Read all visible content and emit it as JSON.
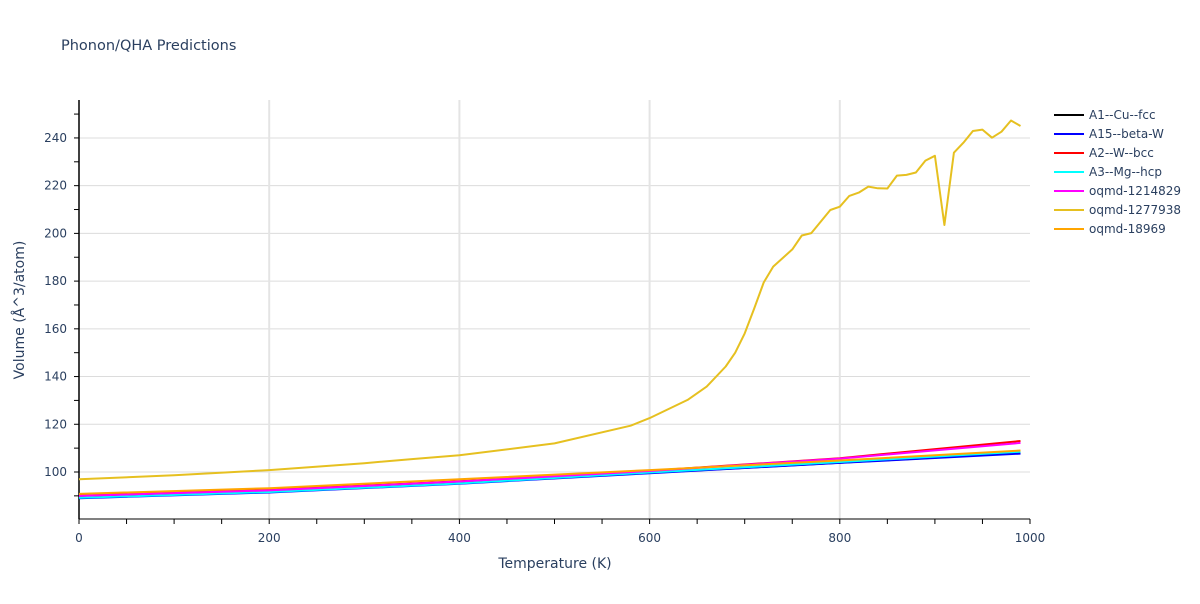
{
  "chart_data": {
    "type": "line",
    "title": "Phonon/QHA Predictions",
    "xlabel": "Temperature (K)",
    "ylabel": "Volume (Å^3/atom)",
    "xlim": [
      0,
      1000
    ],
    "ylim": [
      80.3,
      255.9
    ],
    "xticks": [
      0,
      200,
      400,
      600,
      800,
      1000
    ],
    "yticks": [
      100,
      120,
      140,
      160,
      180,
      200,
      220,
      240
    ],
    "grid": true,
    "legend_position": "right",
    "series": [
      {
        "name": "A1--Cu--fcc",
        "color": "#000000",
        "points": [
          [
            0,
            89.3
          ],
          [
            200,
            91.7
          ],
          [
            400,
            95.3
          ],
          [
            600,
            99.6
          ],
          [
            800,
            103.9
          ],
          [
            990,
            107.9
          ]
        ]
      },
      {
        "name": "A15--beta-W",
        "color": "#0000ff",
        "points": [
          [
            0,
            89.0
          ],
          [
            200,
            91.4
          ],
          [
            400,
            95.1
          ],
          [
            600,
            99.5
          ],
          [
            800,
            103.8
          ],
          [
            990,
            107.7
          ]
        ]
      },
      {
        "name": "A2--W--bcc",
        "color": "#ff0000",
        "points": [
          [
            0,
            90.2
          ],
          [
            200,
            92.5
          ],
          [
            400,
            96.1
          ],
          [
            600,
            100.5
          ],
          [
            800,
            105.8
          ],
          [
            990,
            113.0
          ]
        ]
      },
      {
        "name": "A3--Mg--hcp",
        "color": "#00ffff",
        "points": [
          [
            0,
            89.2
          ],
          [
            200,
            91.6
          ],
          [
            400,
            95.2
          ],
          [
            600,
            99.8
          ],
          [
            800,
            104.2
          ],
          [
            990,
            108.5
          ]
        ]
      },
      {
        "name": "oqmd-1214829",
        "color": "#ff00ff",
        "points": [
          [
            0,
            90.0
          ],
          [
            200,
            92.3
          ],
          [
            400,
            96.0
          ],
          [
            600,
            100.4
          ],
          [
            800,
            105.6
          ],
          [
            990,
            112.2
          ]
        ]
      },
      {
        "name": "oqmd-1277938",
        "color": "#e6c020",
        "points": [
          [
            0,
            97.0
          ],
          [
            100,
            98.6
          ],
          [
            200,
            100.8
          ],
          [
            300,
            103.7
          ],
          [
            350,
            105.4
          ],
          [
            400,
            107.0
          ],
          [
            500,
            112.0
          ],
          [
            580,
            119.4
          ],
          [
            600,
            122.6
          ],
          [
            640,
            130.2
          ],
          [
            660,
            135.8
          ],
          [
            680,
            144.2
          ],
          [
            690,
            150.0
          ],
          [
            700,
            158.1
          ],
          [
            710,
            168.5
          ],
          [
            720,
            179.4
          ],
          [
            730,
            186.1
          ],
          [
            750,
            193.3
          ],
          [
            760,
            199.1
          ],
          [
            770,
            200.1
          ],
          [
            790,
            209.8
          ],
          [
            800,
            211.2
          ],
          [
            810,
            215.7
          ],
          [
            820,
            217.1
          ],
          [
            830,
            219.6
          ],
          [
            840,
            218.9
          ],
          [
            850,
            218.8
          ],
          [
            860,
            224.2
          ],
          [
            870,
            224.5
          ],
          [
            880,
            225.5
          ],
          [
            890,
            230.5
          ],
          [
            900,
            232.5
          ],
          [
            910,
            203.5
          ],
          [
            920,
            233.8
          ],
          [
            930,
            238.0
          ],
          [
            940,
            242.9
          ],
          [
            950,
            243.5
          ],
          [
            960,
            240.1
          ],
          [
            970,
            242.6
          ],
          [
            980,
            247.3
          ],
          [
            990,
            245.0
          ]
        ]
      },
      {
        "name": "oqmd-18969",
        "color": "#ffa500",
        "points": [
          [
            0,
            90.8
          ],
          [
            200,
            93.2
          ],
          [
            400,
            97.0
          ],
          [
            600,
            100.8
          ],
          [
            800,
            104.8
          ],
          [
            990,
            109.0
          ]
        ]
      }
    ]
  }
}
